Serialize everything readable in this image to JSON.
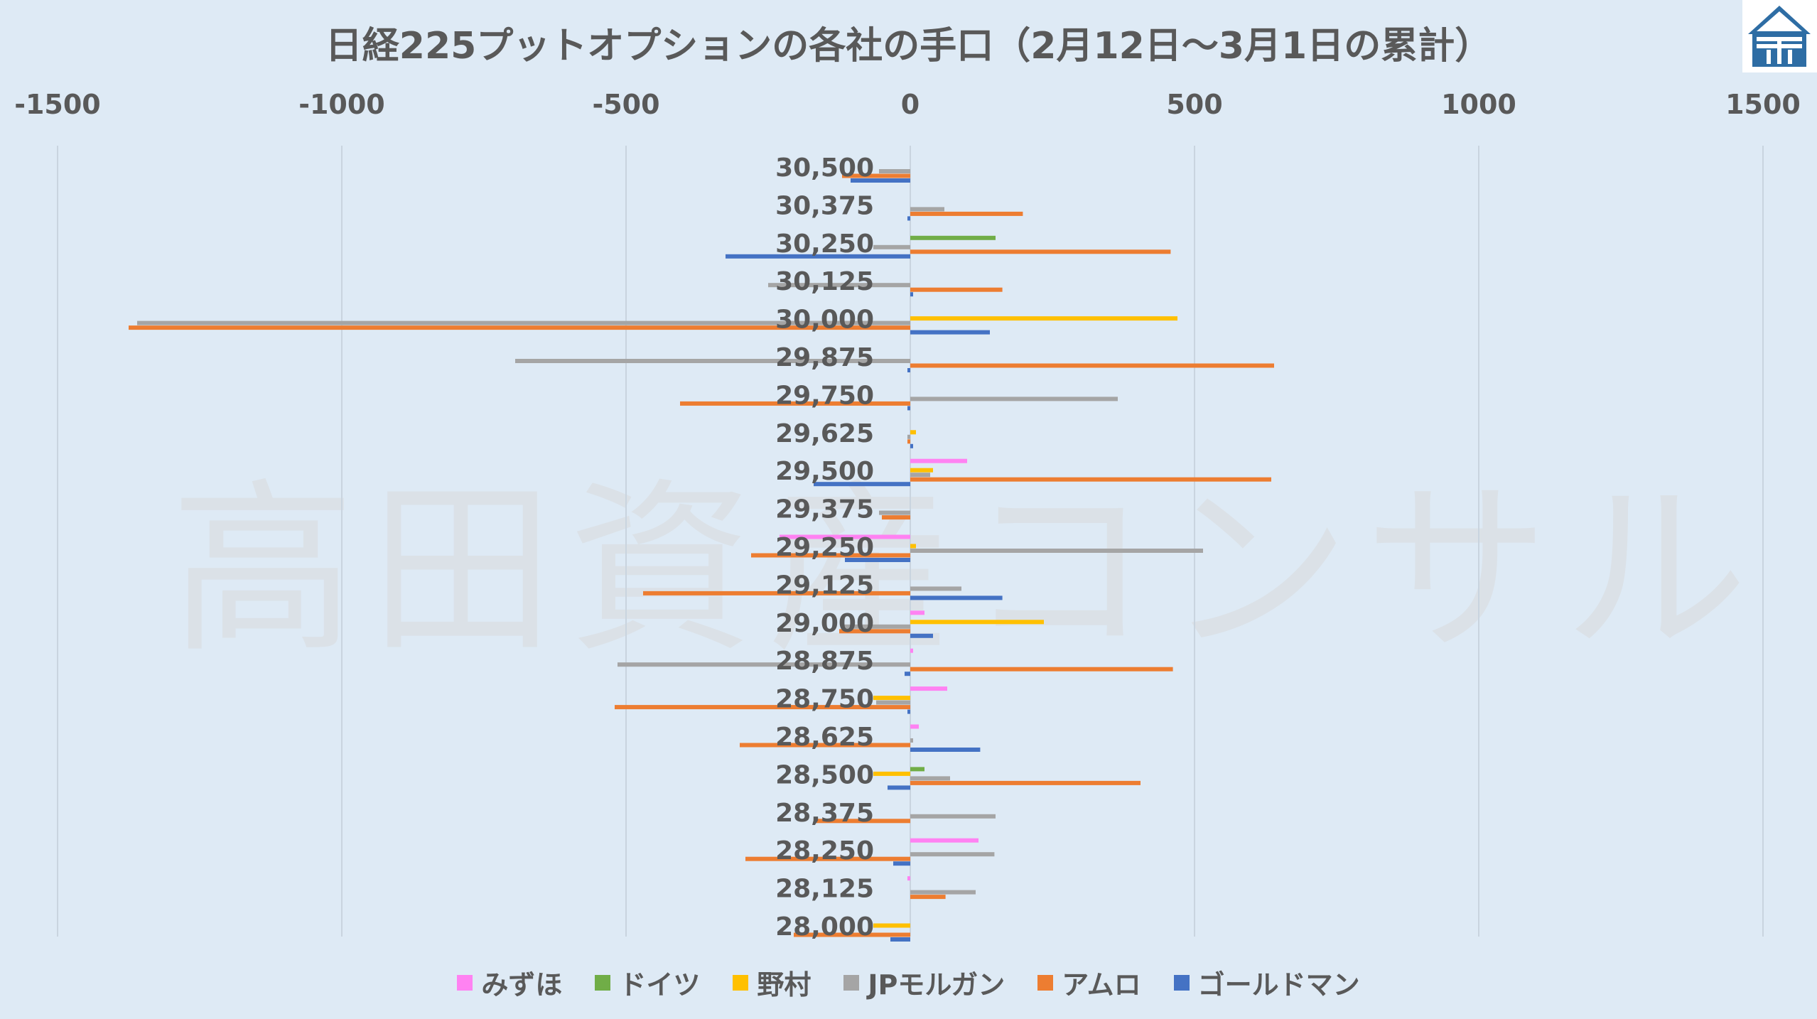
{
  "title": "日経225プットオプションの各社の手口（2月12日～3月1日の累計）",
  "watermark": "高田資産コンサル",
  "chart_data": {
    "type": "bar",
    "orientation": "horizontal",
    "title": "日経225プットオプションの各社の手口（2月12日～3月1日の累計）",
    "xlim": [
      -1500,
      1500
    ],
    "x_ticks": [
      "-1500",
      "-1000",
      "-500",
      "0",
      "500",
      "1000",
      "1500"
    ],
    "x_tick_values": [
      -1500,
      -1000,
      -500,
      0,
      500,
      1000,
      1500
    ],
    "grid": true,
    "legend_position": "bottom",
    "categories": [
      "30,500",
      "30,375",
      "30,250",
      "30,125",
      "30,000",
      "29,875",
      "29,750",
      "29,625",
      "29,500",
      "29,375",
      "29,250",
      "29,125",
      "29,000",
      "28,875",
      "28,750",
      "28,625",
      "28,500",
      "28,375",
      "28,250",
      "28,125",
      "28,000"
    ],
    "series": [
      {
        "name": "みずほ",
        "color": "#ff82f2",
        "values": [
          0,
          0,
          0,
          0,
          0,
          0,
          0,
          0,
          100,
          0,
          -230,
          0,
          25,
          5,
          65,
          15,
          0,
          0,
          120,
          -5,
          0
        ]
      },
      {
        "name": "ドイツ",
        "color": "#70ad47",
        "values": [
          0,
          0,
          150,
          0,
          0,
          0,
          0,
          0,
          0,
          0,
          0,
          0,
          0,
          0,
          0,
          0,
          25,
          0,
          0,
          0,
          0
        ]
      },
      {
        "name": "野村",
        "color": "#ffc000",
        "values": [
          0,
          0,
          0,
          0,
          470,
          0,
          0,
          10,
          40,
          0,
          10,
          0,
          235,
          0,
          -65,
          0,
          -65,
          0,
          0,
          0,
          -65
        ]
      },
      {
        "name": "JPモルガン",
        "color": "#a5a5a5",
        "values": [
          -55,
          60,
          -65,
          -250,
          -1360,
          -695,
          365,
          -5,
          35,
          -55,
          515,
          90,
          -120,
          -515,
          -60,
          5,
          70,
          150,
          148,
          115,
          0
        ]
      },
      {
        "name": "アムロ",
        "color": "#ed7d31",
        "values": [
          -120,
          198,
          458,
          162,
          -1375,
          640,
          -405,
          -5,
          635,
          -50,
          -280,
          -470,
          -125,
          462,
          -520,
          -300,
          405,
          -165,
          -290,
          62,
          -205
        ]
      },
      {
        "name": "ゴールドマン",
        "color": "#4472c4",
        "values": [
          -105,
          -5,
          -325,
          5,
          140,
          -5,
          -5,
          5,
          -170,
          0,
          -115,
          162,
          40,
          -10,
          -5,
          123,
          -40,
          0,
          -30,
          0,
          -35
        ]
      }
    ]
  }
}
